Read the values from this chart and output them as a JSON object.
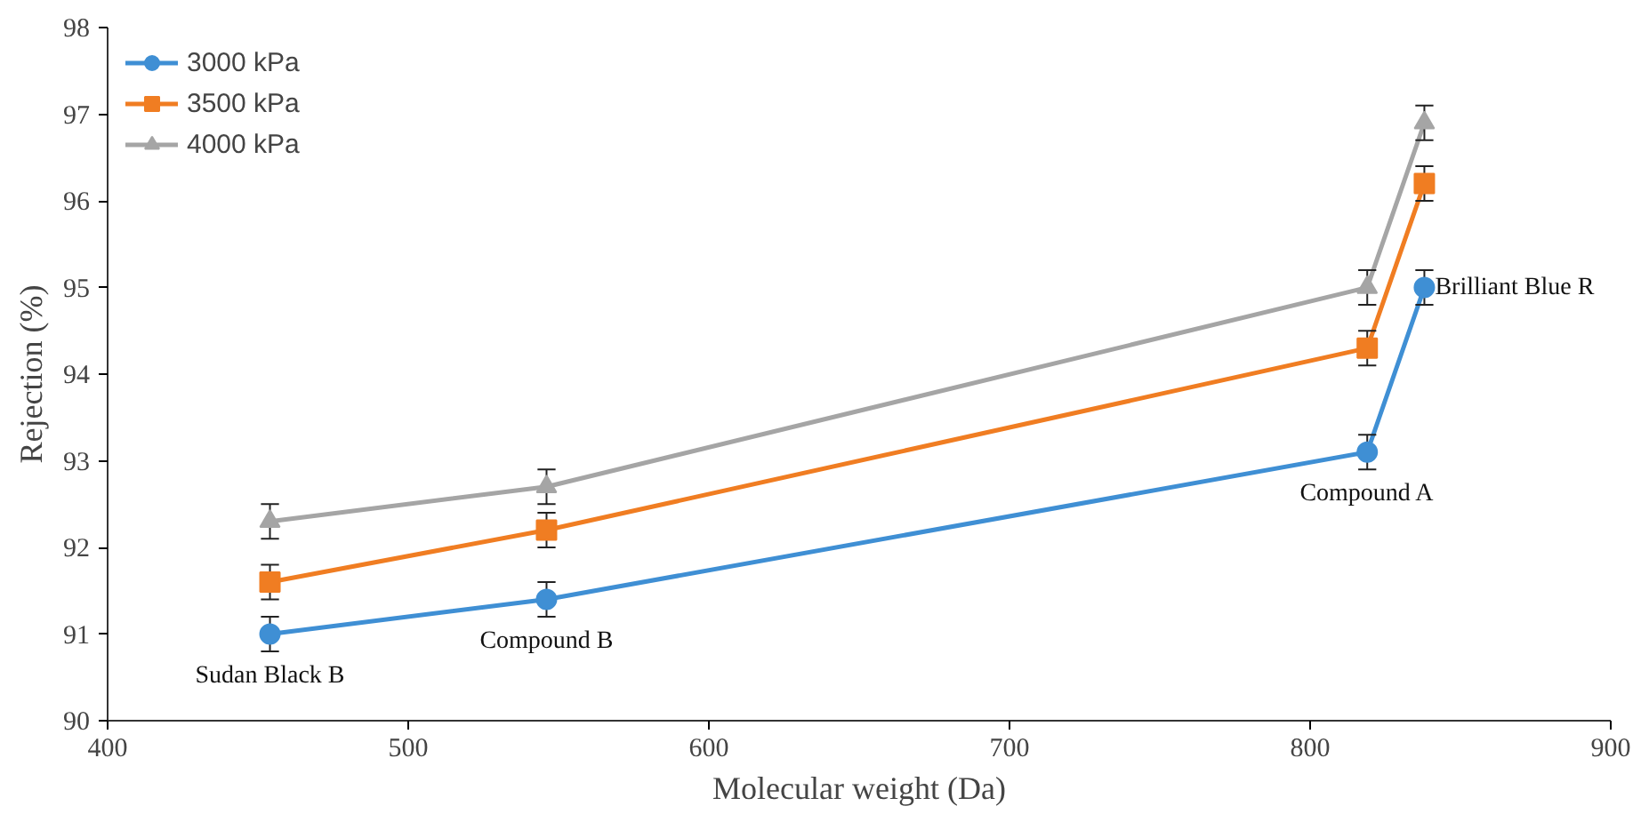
{
  "chart_data": {
    "type": "line",
    "xlabel": "Molecular weight (Da)",
    "ylabel": "Rejection (%)",
    "x": [
      454,
      546,
      819,
      838
    ],
    "series": [
      {
        "name": "3000 kPa",
        "color": "#3f8fd4",
        "marker": "circle",
        "values": [
          91.0,
          91.4,
          93.1,
          95.0
        ],
        "errors": [
          0.2,
          0.2,
          0.2,
          0.2
        ]
      },
      {
        "name": "3500 kPa",
        "color": "#f07d22",
        "marker": "square",
        "values": [
          91.6,
          92.2,
          94.3,
          96.2
        ],
        "errors": [
          0.2,
          0.2,
          0.2,
          0.2
        ]
      },
      {
        "name": "4000 kPa",
        "color": "#a5a5a5",
        "marker": "triangle",
        "values": [
          92.3,
          92.7,
          95.0,
          96.9
        ],
        "errors": [
          0.2,
          0.2,
          0.2,
          0.2
        ]
      }
    ],
    "annotations": [
      {
        "text": "Sudan Black B",
        "x": 454,
        "y": 91.0
      },
      {
        "text": "Compound B",
        "x": 546,
        "y": 91.4
      },
      {
        "text": "Compound A",
        "x": 819,
        "y": 93.1
      },
      {
        "text": "Brilliant Blue R",
        "x": 838,
        "y": 95.0
      }
    ],
    "xlim": [
      400,
      900
    ],
    "xticks": [
      400,
      500,
      600,
      700,
      800,
      900
    ],
    "ylim": [
      90,
      98
    ],
    "yticks": [
      90,
      91,
      92,
      93,
      94,
      95,
      96,
      97,
      98
    ],
    "grid": false,
    "legend": "top left"
  }
}
